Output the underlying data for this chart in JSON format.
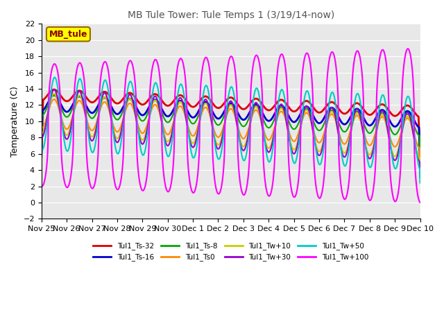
{
  "title": "MB Tule Tower: Tule Temps 1 (3/19/14-now)",
  "ylabel": "Temperature (C)",
  "ylim": [
    -2,
    22
  ],
  "yticks": [
    -2,
    0,
    2,
    4,
    6,
    8,
    10,
    12,
    14,
    16,
    18,
    20,
    22
  ],
  "background_color": "#ffffff",
  "plot_bg_color": "#e8e8e8",
  "legend_box_label": "MB_tule",
  "legend_box_color": "#ffff00",
  "legend_box_border": "#996600",
  "series": [
    {
      "label": "Tul1_Ts-32",
      "color": "#dd0000",
      "lw": 2.0
    },
    {
      "label": "Tul1_Ts-16",
      "color": "#0000cc",
      "lw": 2.0
    },
    {
      "label": "Tul1_Ts-8",
      "color": "#00aa00",
      "lw": 1.5
    },
    {
      "label": "Tul1_Ts0",
      "color": "#ff8800",
      "lw": 1.5
    },
    {
      "label": "Tul1_Tw+10",
      "color": "#cccc00",
      "lw": 1.5
    },
    {
      "label": "Tul1_Tw+30",
      "color": "#9900cc",
      "lw": 1.5
    },
    {
      "label": "Tul1_Tw+50",
      "color": "#00cccc",
      "lw": 1.5
    },
    {
      "label": "Tul1_Tw+100",
      "color": "#ff00ff",
      "lw": 1.5
    }
  ],
  "tick_labels": [
    "Nov 25",
    "Nov 26",
    "Nov 27",
    "Nov 28",
    "Nov 29",
    "Nov 30",
    "Dec 1",
    "Dec 2",
    "Dec 3",
    "Dec 4",
    "Dec 5",
    "Dec 6",
    "Dec 7",
    "Dec 8",
    "Dec 9",
    "Dec 10"
  ]
}
